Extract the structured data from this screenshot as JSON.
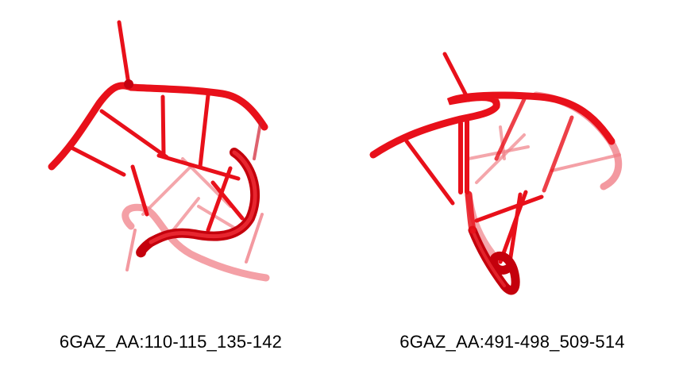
{
  "colors": {
    "backbone": "#e8101a",
    "backbone_dark": "#b00008",
    "backbone_light": "#f08088",
    "background": "#ffffff"
  },
  "panels": [
    {
      "caption": "6GAZ_AA:110-115_135-142"
    },
    {
      "caption": "6GAZ_AA:491-498_509-514"
    }
  ]
}
